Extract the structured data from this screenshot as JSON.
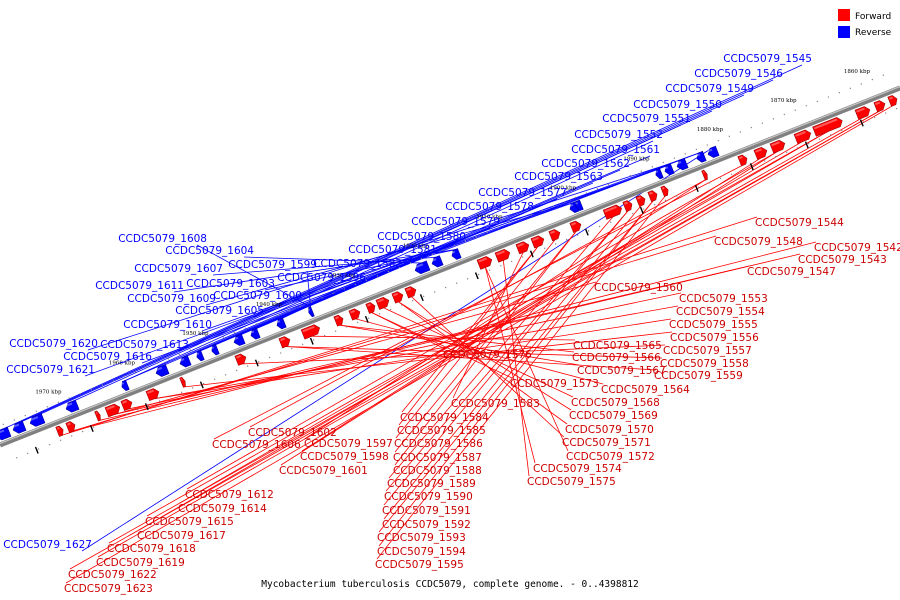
{
  "caption": "Mycobacterium tuberculosis CCDC5079, complete genome. - 0..4398812",
  "legend": [
    {
      "label": "Forward",
      "color": "#ff0000"
    },
    {
      "label": "Reverse",
      "color": "#0000ff"
    }
  ],
  "colors": {
    "forward": "#ff0000",
    "reverse": "#0000ff",
    "backbone": "#808080"
  },
  "ticks": [
    "1860 kbp",
    "1870 kbp",
    "1880 kbp",
    "1890 kbp",
    "1900 kbp",
    "1910 kbp",
    "1920 kbp",
    "1930 kbp",
    "1940 kbp",
    "1950 kbp",
    "1960 kbp",
    "1970 kbp"
  ],
  "reverse_labels": [
    "CCDC5079_1545",
    "CCDC5079_1546",
    "CCDC5079_1549",
    "CCDC5079_1550",
    "CCDC5079_1551",
    "CCDC5079_1552",
    "CCDC5079_1561",
    "CCDC5079_1562",
    "CCDC5079_1563",
    "CCDC5079_1577",
    "CCDC5079_1578",
    "CCDC5079_1579",
    "CCDC5079_1580",
    "CCDC5079_1581",
    "CCDC5079_1582",
    "CCDC5079_1596",
    "CCDC5079_1599",
    "CCDC5079_1608",
    "CCDC5079_1604",
    "CCDC5079_1607",
    "CCDC5079_1603",
    "CCDC5079_1611",
    "CCDC5079_1609",
    "CCDC5079_1600",
    "CCDC5079_1605",
    "CCDC5079_1610",
    "CCDC5079_1613",
    "CCDC5079_1620",
    "CCDC5079_1616",
    "CCDC5079_1621",
    "CCDC5079_1627"
  ],
  "forward_labels": [
    "CCDC5079_1544",
    "CCDC5079_1542",
    "CCDC5079_1548",
    "CCDC5079_1543",
    "CCDC5079_1547",
    "CCDC5079_1560",
    "CCDC5079_1553",
    "CCDC5079_1554",
    "CCDC5079_1555",
    "CCDC5079_1556",
    "CCDC5079_1557",
    "CCDC5079_1558",
    "CCDC5079_1559",
    "CCDC5079_1565",
    "CCDC5079_1566",
    "CCDC5079_1567",
    "CCDC5079_1564",
    "CCDC5079_1576",
    "CCDC5079_1573",
    "CCDC5079_1568",
    "CCDC5079_1569",
    "CCDC5079_1570",
    "CCDC5079_1571",
    "CCDC5079_1572",
    "CCDC5079_1574",
    "CCDC5079_1575",
    "CCDC5079_1583",
    "CCDC5079_1584",
    "CCDC5079_1585",
    "CCDC5079_1586",
    "CCDC5079_1587",
    "CCDC5079_1588",
    "CCDC5079_1589",
    "CCDC5079_1590",
    "CCDC5079_1591",
    "CCDC5079_1592",
    "CCDC5079_1593",
    "CCDC5079_1594",
    "CCDC5079_1595",
    "CCDC5079_1602",
    "CCDC5079_1597",
    "CCDC5079_1606",
    "CCDC5079_1598",
    "CCDC5079_1601",
    "CCDC5079_1612",
    "CCDC5079_1614",
    "CCDC5079_1615",
    "CCDC5079_1617",
    "CCDC5079_1618",
    "CCDC5079_1619",
    "CCDC5079_1622",
    "CCDC5079_1623"
  ]
}
